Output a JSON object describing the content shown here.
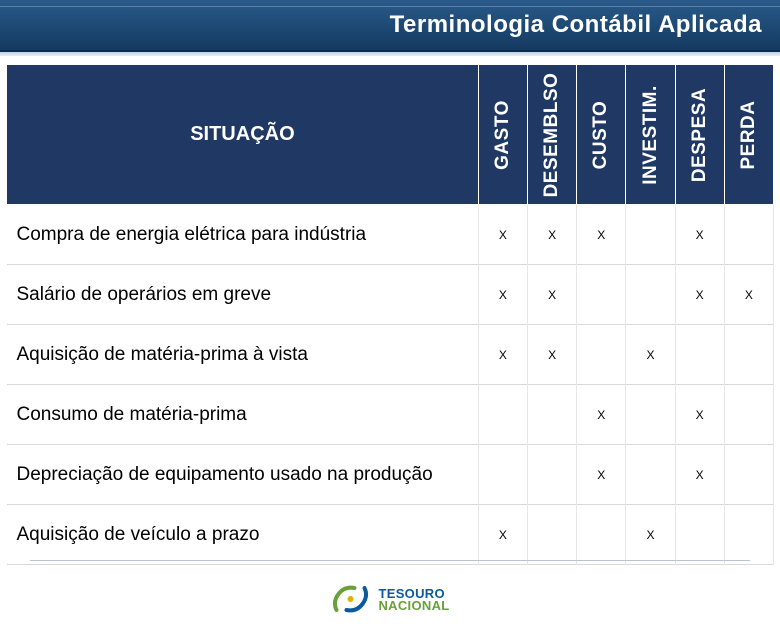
{
  "title": "Terminologia Contábil Aplicada",
  "table": {
    "situacao_header": "SITUAÇÃO",
    "columns": [
      "GASTO",
      "DESEMBLSO",
      "CUSTO",
      "INVESTIM.",
      "DESPESA",
      "PERDA"
    ],
    "mark_char": "X",
    "rows": [
      {
        "label": "Compra de energia elétrica para indústria",
        "marks": [
          true,
          true,
          true,
          false,
          true,
          false
        ]
      },
      {
        "label": "Salário de operários em  greve",
        "marks": [
          true,
          true,
          false,
          false,
          true,
          true
        ]
      },
      {
        "label": "Aquisição de matéria-prima à vista",
        "marks": [
          true,
          true,
          false,
          true,
          false,
          false
        ]
      },
      {
        "label": "Consumo de matéria-prima",
        "marks": [
          false,
          false,
          true,
          false,
          true,
          false
        ]
      },
      {
        "label": "Depreciação de equipamento usado na produção",
        "marks": [
          false,
          false,
          true,
          false,
          true,
          false
        ]
      },
      {
        "label": "Aquisição de veículo a prazo",
        "marks": [
          true,
          false,
          false,
          true,
          false,
          false
        ]
      }
    ],
    "header_bg": "#1f3864",
    "header_fg": "#ffffff",
    "cell_bg": "#ffffff",
    "row_label_fontsize": 19,
    "header_fontsize": 20,
    "rot_fontsize": 19,
    "mark_fontsize": 12
  },
  "logo": {
    "line1": "TESOURO",
    "line2": "NACIONAL"
  }
}
